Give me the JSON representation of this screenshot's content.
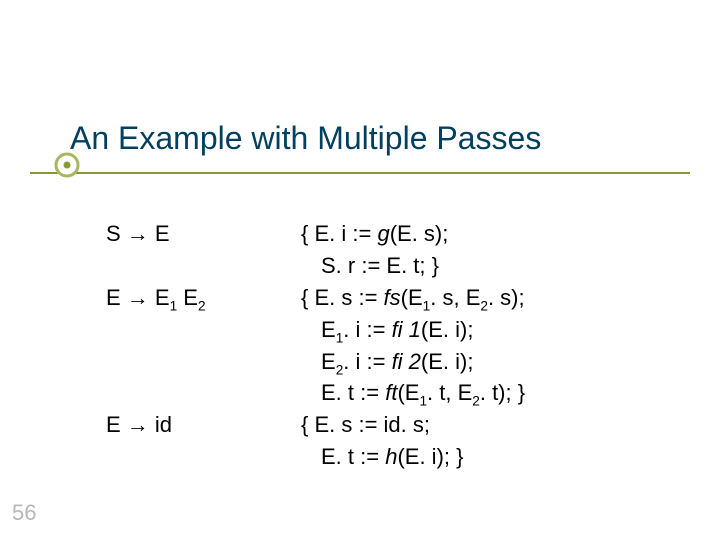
{
  "colors": {
    "title": "#03405f",
    "body": "#000000",
    "underline": "#869733",
    "bullet_ring": "#a7b65f",
    "bullet_fill": "#869733",
    "pagenum": "#b7b7b7",
    "bg": "#ffffff"
  },
  "fontsize": {
    "title": 32,
    "body": 22,
    "pagenum": 22
  },
  "title": "An Example with Multiple Passes",
  "page_number": "56",
  "grammar": {
    "rule1": {
      "prod": "S → E",
      "lines": [
        {
          "t": "{ E. i := ",
          "fn": "g",
          "rest": "(E. s);"
        },
        {
          "t": "S. r := E. t; }",
          "indent": true
        }
      ]
    },
    "rule2": {
      "prod_lhs": "E → E",
      "sub1": "1",
      "mid": " E",
      "sub2": "2",
      "lines": [
        {
          "t": "{ E. s := ",
          "fn": "fs",
          "rest_html": "(E<sub>1</sub>. s, E<sub>2</sub>. s);"
        },
        {
          "html": "E<sub>1</sub>. i := ",
          "fn": "fi 1",
          "rest": "(E. i);",
          "indent": true
        },
        {
          "html": "E<sub>2</sub>. i := ",
          "fn": "fi 2",
          "rest": "(E. i);",
          "indent": true
        },
        {
          "t": "E. t := ",
          "fn": "ft",
          "rest_html": "(E<sub>1</sub>. t, E<sub>2</sub>. t); }",
          "indent": true
        }
      ]
    },
    "rule3": {
      "prod": "E → id",
      "lines": [
        {
          "t": "{ E. s := id. s;"
        },
        {
          "t": "E. t := ",
          "fn": "h",
          "rest": "(E. i); }",
          "indent": true
        }
      ]
    }
  }
}
